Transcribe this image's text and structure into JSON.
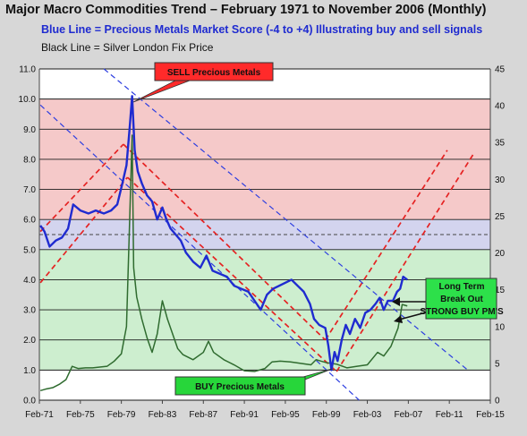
{
  "header": {
    "title": "Major Macro Commodities Trend – February 1971 to November 2006 (Monthly)",
    "subtitle": "Blue Line = Precious Metals Market Score (-4 to +4) Illustrating buy and sell signals",
    "subtitle2": "Black Line = Silver London Fix Price"
  },
  "colors": {
    "band_red": "#f5c9c9",
    "band_blue": "#d3d4ee",
    "band_green": "#cdeecf",
    "band_white": "#ffffff",
    "score_line": "#1f2bd0",
    "silver_line": "#2f6b2f",
    "trend_red": "#e52222",
    "trend_blue": "#2d3ee0",
    "sell_box": "#ff2a2a",
    "buy_box": "#27d63a",
    "breakout_box": "#2de04a"
  },
  "annotations": {
    "sell": "SELL Precious Metals",
    "buy": "BUY Precious Metals",
    "breakout_1": "Long Term",
    "breakout_2": "Break Out",
    "breakout_3": "STRONG BUY PM'S"
  },
  "chart_data": {
    "type": "line",
    "x_ticks": [
      "Feb-71",
      "Feb-75",
      "Feb-79",
      "Feb-83",
      "Feb-87",
      "Feb-91",
      "Feb-95",
      "Feb-99",
      "Feb-03",
      "Feb-07",
      "Feb-11",
      "Feb-15"
    ],
    "xlim": [
      1971,
      2015
    ],
    "y_left": {
      "ylim": [
        0,
        11
      ],
      "ticks": [
        "0.0",
        "1.0",
        "2.0",
        "3.0",
        "4.0",
        "5.0",
        "6.0",
        "7.0",
        "8.0",
        "9.0",
        "10.0",
        "11.0"
      ]
    },
    "y_right": {
      "ylim": [
        0,
        45
      ],
      "ticks": [
        "0",
        "5",
        "10",
        "15",
        "20",
        "25",
        "30",
        "35",
        "40",
        "45"
      ]
    },
    "bands_left_units": [
      {
        "from": 0,
        "to": 1,
        "color": "white"
      },
      {
        "from": 1,
        "to": 5,
        "color": "green"
      },
      {
        "from": 5,
        "to": 6,
        "color": "blue"
      },
      {
        "from": 6,
        "to": 10,
        "color": "red"
      },
      {
        "from": 10,
        "to": 11,
        "color": "white"
      }
    ],
    "series": [
      {
        "axis": "left",
        "points": [
          [
            1971.1,
            5.8
          ],
          [
            1971.5,
            5.6
          ],
          [
            1972,
            5.1
          ],
          [
            1972.6,
            5.3
          ],
          [
            1973.2,
            5.4
          ],
          [
            1973.8,
            5.7
          ],
          [
            1974.3,
            6.5
          ],
          [
            1975,
            6.3
          ],
          [
            1975.8,
            6.2
          ],
          [
            1976.5,
            6.3
          ],
          [
            1977.3,
            6.2
          ],
          [
            1978,
            6.3
          ],
          [
            1978.6,
            6.5
          ],
          [
            1979.1,
            7.2
          ],
          [
            1979.5,
            7.8
          ],
          [
            1979.8,
            9.0
          ],
          [
            1980.05,
            10.1
          ],
          [
            1980.3,
            8.3
          ],
          [
            1980.6,
            7.6
          ],
          [
            1981,
            7.2
          ],
          [
            1981.5,
            6.8
          ],
          [
            1982,
            6.6
          ],
          [
            1982.5,
            6.0
          ],
          [
            1983,
            6.4
          ],
          [
            1983.4,
            6.0
          ],
          [
            1983.8,
            5.7
          ],
          [
            1984.3,
            5.5
          ],
          [
            1984.8,
            5.3
          ],
          [
            1985.3,
            4.9
          ],
          [
            1986,
            4.6
          ],
          [
            1986.7,
            4.4
          ],
          [
            1987.3,
            4.8
          ],
          [
            1987.9,
            4.3
          ],
          [
            1988.6,
            4.2
          ],
          [
            1989.3,
            4.1
          ],
          [
            1990,
            3.8
          ],
          [
            1990.7,
            3.7
          ],
          [
            1991.4,
            3.6
          ],
          [
            1992,
            3.3
          ],
          [
            1992.6,
            3.0
          ],
          [
            1993.2,
            3.5
          ],
          [
            1993.8,
            3.7
          ],
          [
            1994.4,
            3.8
          ],
          [
            1995,
            3.9
          ],
          [
            1995.6,
            4.0
          ],
          [
            1996.2,
            3.8
          ],
          [
            1996.8,
            3.6
          ],
          [
            1997.4,
            3.2
          ],
          [
            1997.8,
            2.7
          ],
          [
            1998.3,
            2.5
          ],
          [
            1998.9,
            2.4
          ],
          [
            1999.2,
            1.8
          ],
          [
            1999.5,
            1.0
          ],
          [
            1999.8,
            1.6
          ],
          [
            2000.1,
            1.3
          ],
          [
            2000.5,
            2.0
          ],
          [
            2000.9,
            2.5
          ],
          [
            2001.3,
            2.2
          ],
          [
            2001.8,
            2.7
          ],
          [
            2002.3,
            2.4
          ],
          [
            2002.8,
            2.9
          ],
          [
            2003.3,
            3.0
          ],
          [
            2003.8,
            3.2
          ],
          [
            2004.2,
            3.4
          ],
          [
            2004.6,
            3.0
          ],
          [
            2005,
            3.3
          ],
          [
            2005.5,
            3.3
          ],
          [
            2005.9,
            3.6
          ],
          [
            2006.2,
            3.7
          ],
          [
            2006.5,
            4.1
          ],
          [
            2006.9,
            4.0
          ]
        ]
      },
      {
        "axis": "right",
        "points": [
          [
            1971.1,
            1.3
          ],
          [
            1971.6,
            1.5
          ],
          [
            1972.3,
            1.7
          ],
          [
            1973,
            2.2
          ],
          [
            1973.6,
            2.8
          ],
          [
            1974.2,
            4.6
          ],
          [
            1974.8,
            4.3
          ],
          [
            1975.5,
            4.4
          ],
          [
            1976.2,
            4.4
          ],
          [
            1976.9,
            4.5
          ],
          [
            1977.6,
            4.6
          ],
          [
            1978.3,
            5.3
          ],
          [
            1979,
            6.3
          ],
          [
            1979.5,
            10.0
          ],
          [
            1979.8,
            24.0
          ],
          [
            1980.05,
            36.0
          ],
          [
            1980.2,
            18.0
          ],
          [
            1980.5,
            14.0
          ],
          [
            1981,
            11.0
          ],
          [
            1981.5,
            8.5
          ],
          [
            1982,
            6.5
          ],
          [
            1982.5,
            9.0
          ],
          [
            1983,
            13.5
          ],
          [
            1983.5,
            11.0
          ],
          [
            1984,
            9.0
          ],
          [
            1984.5,
            7.0
          ],
          [
            1985,
            6.2
          ],
          [
            1986,
            5.5
          ],
          [
            1987,
            6.5
          ],
          [
            1987.5,
            8.0
          ],
          [
            1988,
            6.5
          ],
          [
            1989,
            5.5
          ],
          [
            1990,
            4.8
          ],
          [
            1991,
            4.0
          ],
          [
            1992,
            3.9
          ],
          [
            1993,
            4.3
          ],
          [
            1993.7,
            5.2
          ],
          [
            1994.5,
            5.3
          ],
          [
            1995.5,
            5.2
          ],
          [
            1996.5,
            5.0
          ],
          [
            1997.5,
            4.8
          ],
          [
            1998,
            5.5
          ],
          [
            1998.5,
            5.3
          ],
          [
            1999,
            5.1
          ],
          [
            2000,
            4.9
          ],
          [
            2001,
            4.4
          ],
          [
            2002,
            4.6
          ],
          [
            2003,
            4.8
          ],
          [
            2004,
            6.5
          ],
          [
            2004.6,
            6.0
          ],
          [
            2005.3,
            7.3
          ],
          [
            2006,
            9.8
          ],
          [
            2006.4,
            13.0
          ],
          [
            2006.9,
            12.8
          ]
        ]
      }
    ]
  }
}
